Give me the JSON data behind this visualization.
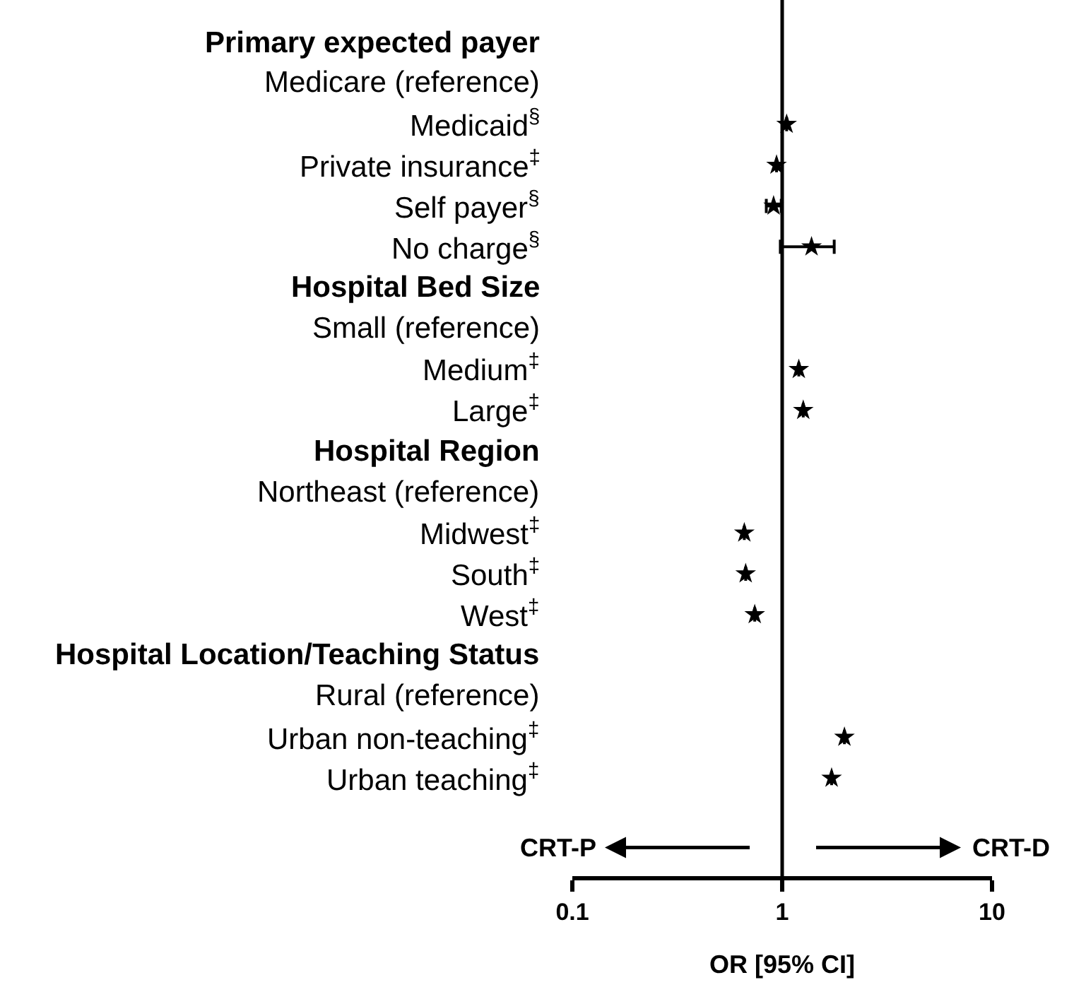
{
  "chart_data": {
    "type": "scatter",
    "orientation": "horizontal",
    "xlabel": "OR [95% CI]",
    "categories": [
      "Primary expected payer",
      "Medicare (reference)",
      "Medicaid$^{§}$",
      "Private insurance$^{‡}$",
      "Self payer$^{§}$",
      "No charge$^{§}$",
      "Hospital Bed Size",
      "Small (reference)",
      "Medium$^{‡}$",
      "Large$^{‡}$",
      "Hospital Region",
      "Northeast (reference)",
      "Midwest$^{‡}$",
      "South$^{‡}$",
      "West$^{‡}$",
      "Hospital Location/Teaching Status",
      "Rural (reference)",
      "Urban non-teaching$^{‡}$",
      "Urban teaching$^{‡}$"
    ],
    "series": [
      {
        "color": "#000000",
        "values": [
          null,
          null,
          1.05,
          0.94,
          0.91,
          1.38,
          null,
          null,
          1.2,
          1.26,
          null,
          null,
          0.66,
          0.67,
          0.74,
          null,
          null,
          1.98,
          1.72
        ],
        "errors": [
          null,
          null,
          null,
          null,
          [
            0.84,
            0.99
          ],
          [
            0.98,
            1.77
          ],
          null,
          null,
          null,
          null,
          null,
          null,
          null,
          null,
          null,
          null,
          null,
          null,
          null
        ]
      }
    ],
    "log": "x",
    "xlim": [
      0.1,
      10
    ],
    "xticks": [
      0.1,
      1,
      10
    ],
    "marker": "star",
    "ref_lines": [
      {
        "axis": "x",
        "value": 1,
        "color": "#000000"
      }
    ],
    "annotations": [
      "CRT-P",
      "CRT-D"
    ]
  }
}
